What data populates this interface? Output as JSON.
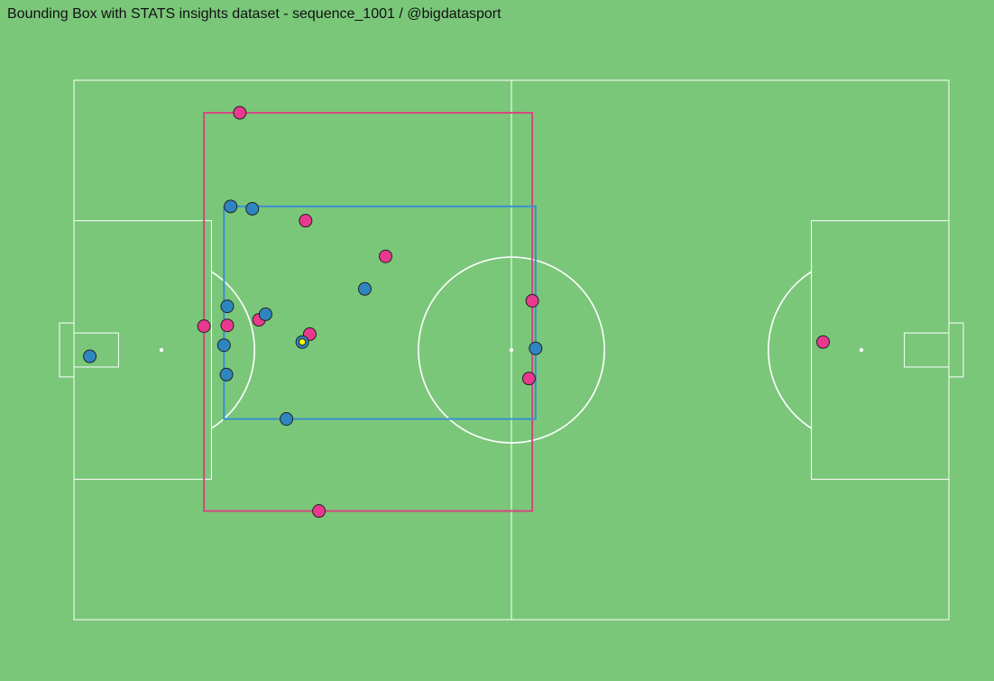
{
  "title": "Bounding Box with STATS insights dataset -  sequence_1001 / @bigdatasport",
  "colors": {
    "background": "#7ac77a",
    "pitch_lines": "#ffffff",
    "team_a": "#e8398f",
    "team_b": "#2e86c1",
    "box_a": "#d6457f",
    "box_b": "#3a8fd0",
    "ball": "#ffff00"
  },
  "chart_data": {
    "type": "scatter",
    "title": "Bounding Box with STATS insights dataset -  sequence_1001 / @bigdatasport",
    "xlabel": "",
    "ylabel": "",
    "xlim": [
      0,
      105
    ],
    "ylim": [
      0,
      68
    ],
    "grid": false,
    "legend": "none",
    "series": [
      {
        "color_key": "team_a",
        "points": [
          {
            "x": 19.9,
            "y": 63.9
          },
          {
            "x": 27.8,
            "y": 50.3
          },
          {
            "x": 37.4,
            "y": 45.8
          },
          {
            "x": 15.6,
            "y": 37.0
          },
          {
            "x": 18.4,
            "y": 37.1
          },
          {
            "x": 22.2,
            "y": 37.8
          },
          {
            "x": 28.3,
            "y": 36.0
          },
          {
            "x": 55.0,
            "y": 40.2
          },
          {
            "x": 54.6,
            "y": 30.4
          },
          {
            "x": 29.4,
            "y": 13.7
          },
          {
            "x": 89.9,
            "y": 35.0
          }
        ]
      },
      {
        "color_key": "team_b",
        "points": [
          {
            "x": 1.9,
            "y": 33.2
          },
          {
            "x": 18.8,
            "y": 52.1
          },
          {
            "x": 21.4,
            "y": 51.8
          },
          {
            "x": 34.9,
            "y": 41.7
          },
          {
            "x": 18.4,
            "y": 39.5
          },
          {
            "x": 23.0,
            "y": 38.5
          },
          {
            "x": 18.0,
            "y": 34.6
          },
          {
            "x": 18.3,
            "y": 30.9
          },
          {
            "x": 27.4,
            "y": 35.0
          },
          {
            "x": 25.5,
            "y": 25.3
          },
          {
            "x": 55.4,
            "y": 34.2
          }
        ]
      }
    ],
    "ball": {
      "x": 27.4,
      "y": 35.0
    },
    "bounding_boxes": [
      {
        "color_key": "box_a",
        "x0": 15.6,
        "x1": 55.0,
        "y0": 13.7,
        "y1": 63.9
      },
      {
        "color_key": "box_b",
        "x0": 18.0,
        "x1": 55.4,
        "y0": 25.3,
        "y1": 52.1
      }
    ]
  }
}
